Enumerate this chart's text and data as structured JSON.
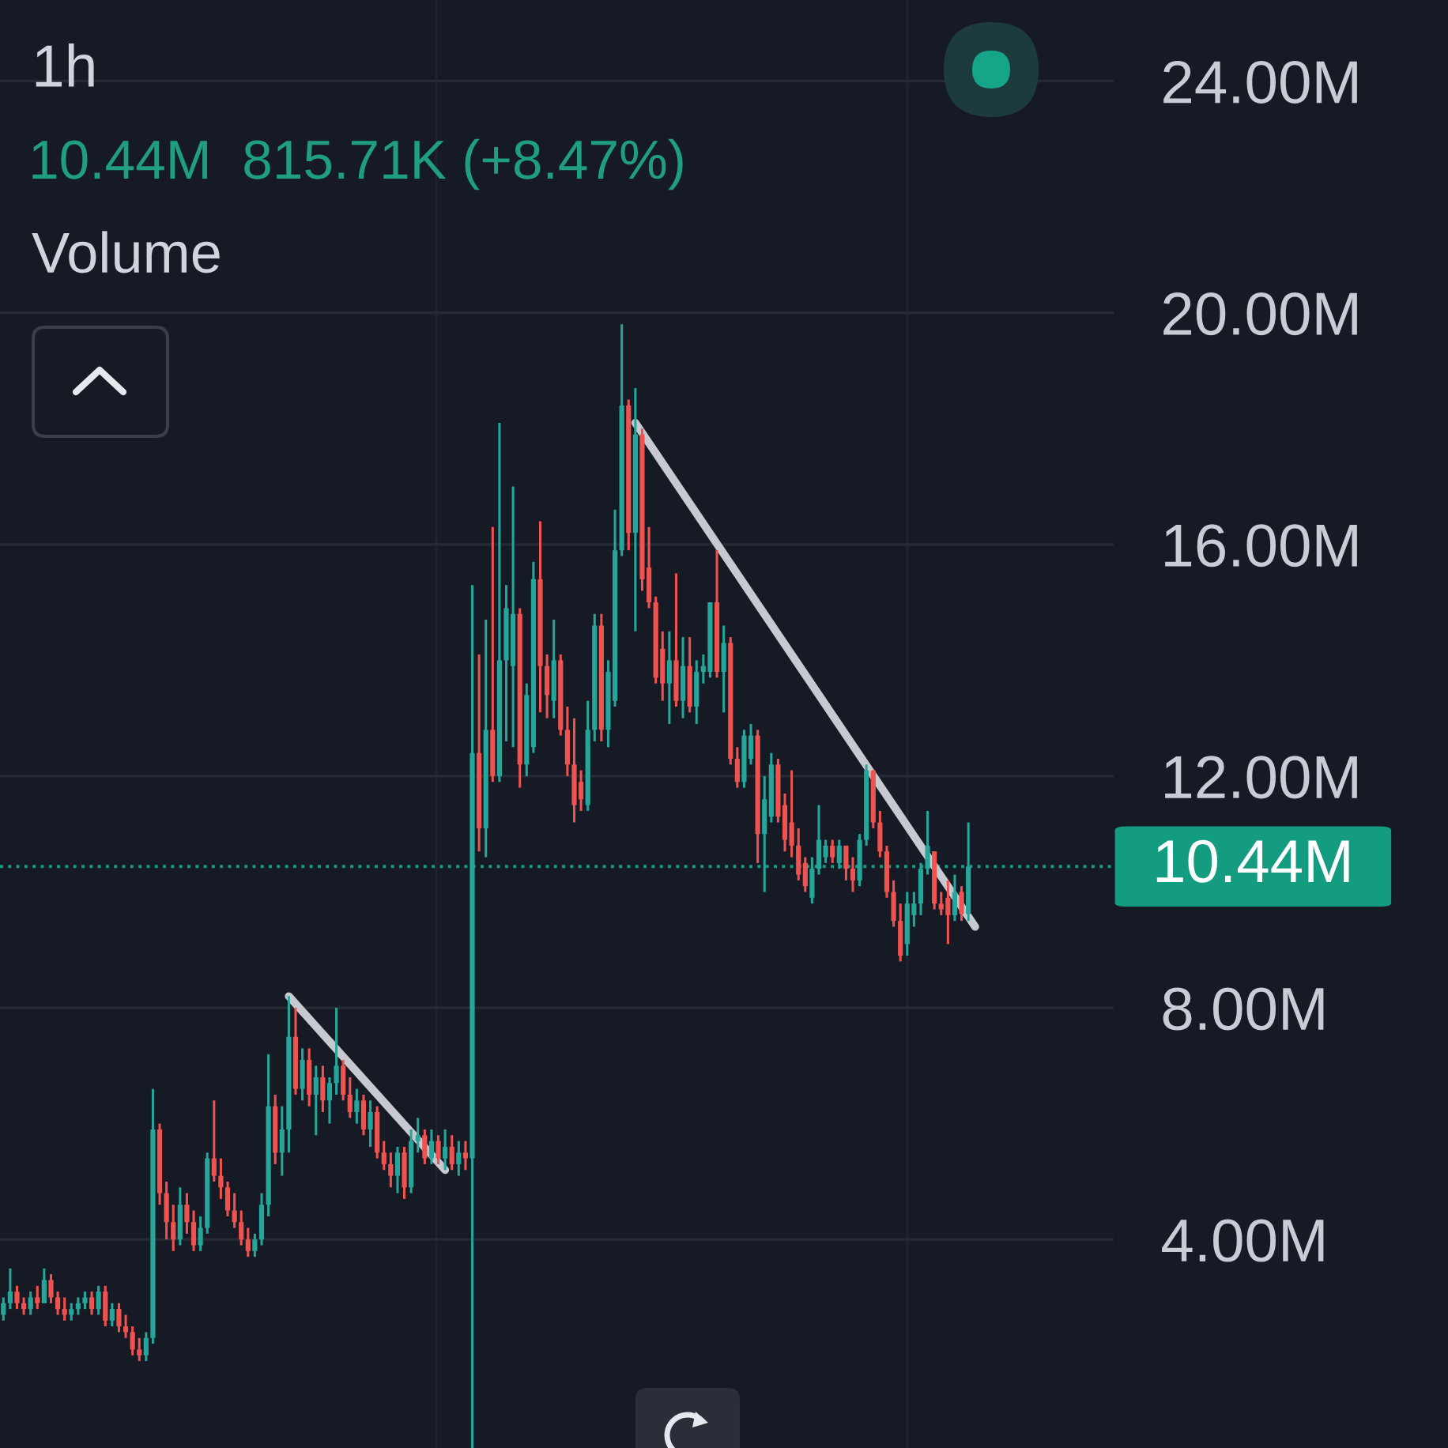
{
  "chart_data": {
    "type": "candlestick",
    "title": "1h",
    "subtitle": "10.44M  815.71K (+8.47%)",
    "annotations": [
      "Volume"
    ],
    "categories": [
      null,
      null,
      null,
      null,
      null,
      null,
      null,
      null,
      null,
      null,
      null,
      null,
      null,
      null,
      null,
      null,
      null,
      null,
      null,
      null,
      null,
      null,
      null,
      null,
      null,
      null,
      null,
      null,
      null,
      null,
      null,
      null,
      null,
      null,
      null,
      null,
      null,
      null,
      null,
      null,
      null,
      null,
      null,
      null,
      null,
      null,
      null,
      null,
      null,
      null,
      null,
      null,
      null,
      null,
      null,
      null,
      null,
      null,
      null,
      null,
      null,
      null,
      null,
      null,
      null,
      null,
      null,
      null,
      null,
      null,
      null,
      null,
      null,
      null,
      null,
      null,
      null,
      null,
      null,
      null,
      null,
      null,
      null,
      null,
      null,
      null,
      null,
      null,
      null,
      null,
      null,
      null,
      null,
      null,
      null,
      null,
      null,
      null,
      null,
      null,
      null,
      null,
      null,
      null,
      null,
      null,
      null,
      null,
      null,
      null,
      null,
      null,
      null,
      null,
      null,
      null,
      null,
      null,
      null,
      null,
      null,
      null,
      null,
      null,
      null,
      null,
      null,
      null,
      null,
      null,
      null,
      null,
      null,
      null,
      null,
      null,
      null,
      null,
      null,
      null,
      null,
      null,
      null,
      null,
      null,
      null,
      null,
      null,
      null,
      null,
      null,
      null,
      null,
      null,
      null,
      null,
      null,
      null,
      null,
      null,
      null,
      null,
      null,
      null
    ],
    "ohlc": [
      [
        2.7,
        3.0,
        2.6,
        2.9
      ],
      [
        2.9,
        3.5,
        2.8,
        3.1
      ],
      [
        3.1,
        3.2,
        2.8,
        2.9
      ],
      [
        2.9,
        3.0,
        2.7,
        2.8
      ],
      [
        2.8,
        3.1,
        2.7,
        3.0
      ],
      [
        3.0,
        3.2,
        2.8,
        2.9
      ],
      [
        2.9,
        3.5,
        2.9,
        3.3
      ],
      [
        3.3,
        3.4,
        2.9,
        3.0
      ],
      [
        3.0,
        3.1,
        2.7,
        2.8
      ],
      [
        2.8,
        3.0,
        2.6,
        2.7
      ],
      [
        2.7,
        2.9,
        2.6,
        2.8
      ],
      [
        2.8,
        3.0,
        2.7,
        2.9
      ],
      [
        2.9,
        3.1,
        2.8,
        3.0
      ],
      [
        3.0,
        3.1,
        2.7,
        2.8
      ],
      [
        2.8,
        3.2,
        2.7,
        3.1
      ],
      [
        3.1,
        3.2,
        2.5,
        2.6
      ],
      [
        2.6,
        2.9,
        2.5,
        2.8
      ],
      [
        2.8,
        2.9,
        2.4,
        2.5
      ],
      [
        2.5,
        2.7,
        2.3,
        2.4
      ],
      [
        2.4,
        2.5,
        2.0,
        2.1
      ],
      [
        2.1,
        2.3,
        1.9,
        2.0
      ],
      [
        2.0,
        2.4,
        1.9,
        2.3
      ],
      [
        2.3,
        6.6,
        2.2,
        5.9
      ],
      [
        5.9,
        6.0,
        4.6,
        4.8
      ],
      [
        4.8,
        5.0,
        4.0,
        4.3
      ],
      [
        4.3,
        4.6,
        3.8,
        4.0
      ],
      [
        4.0,
        4.9,
        3.9,
        4.6
      ],
      [
        4.6,
        4.8,
        4.1,
        4.3
      ],
      [
        4.3,
        4.5,
        3.8,
        3.9
      ],
      [
        3.9,
        4.4,
        3.8,
        4.2
      ],
      [
        4.2,
        5.5,
        4.1,
        5.4
      ],
      [
        5.4,
        6.4,
        5.0,
        5.1
      ],
      [
        5.1,
        5.4,
        4.7,
        4.9
      ],
      [
        4.9,
        5.0,
        4.4,
        4.5
      ],
      [
        4.5,
        4.8,
        4.2,
        4.3
      ],
      [
        4.3,
        4.5,
        3.9,
        4.0
      ],
      [
        4.0,
        4.2,
        3.7,
        3.8
      ],
      [
        3.8,
        4.1,
        3.7,
        4.0
      ],
      [
        4.0,
        4.8,
        3.9,
        4.6
      ],
      [
        4.6,
        7.2,
        4.4,
        6.3
      ],
      [
        6.3,
        6.5,
        5.3,
        5.5
      ],
      [
        5.5,
        6.3,
        5.1,
        5.9
      ],
      [
        5.9,
        8.2,
        5.5,
        7.5
      ],
      [
        7.5,
        8.0,
        6.5,
        6.6
      ],
      [
        6.6,
        7.3,
        6.4,
        7.1
      ],
      [
        7.1,
        7.3,
        6.3,
        6.5
      ],
      [
        6.5,
        7.0,
        5.8,
        6.8
      ],
      [
        6.8,
        7.0,
        6.2,
        6.4
      ],
      [
        6.4,
        6.8,
        6.0,
        6.7
      ],
      [
        6.7,
        8.0,
        6.5,
        7.0
      ],
      [
        7.0,
        7.1,
        6.4,
        6.5
      ],
      [
        6.5,
        6.8,
        6.1,
        6.2
      ],
      [
        6.2,
        6.6,
        6.0,
        6.4
      ],
      [
        6.4,
        6.5,
        5.8,
        5.9
      ],
      [
        5.9,
        6.4,
        5.6,
        6.2
      ],
      [
        6.2,
        6.3,
        5.4,
        5.5
      ],
      [
        5.5,
        5.7,
        5.2,
        5.3
      ],
      [
        5.3,
        5.5,
        4.9,
        5.1
      ],
      [
        5.1,
        5.6,
        4.8,
        5.5
      ],
      [
        5.5,
        5.6,
        4.7,
        4.9
      ],
      [
        4.9,
        5.9,
        4.8,
        5.7
      ],
      [
        5.7,
        6.1,
        5.5,
        5.8
      ],
      [
        5.8,
        5.9,
        5.3,
        5.4
      ],
      [
        5.4,
        5.9,
        5.3,
        5.7
      ],
      [
        5.7,
        5.8,
        5.3,
        5.4
      ],
      [
        5.4,
        5.9,
        5.2,
        5.6
      ],
      [
        5.6,
        5.8,
        5.2,
        5.3
      ],
      [
        5.3,
        5.7,
        5.1,
        5.5
      ],
      [
        5.5,
        5.7,
        5.2,
        5.4
      ],
      [
        5.4,
        15.3,
        0.4,
        12.4
      ],
      [
        12.4,
        14.1,
        10.7,
        11.1
      ],
      [
        11.1,
        14.7,
        10.6,
        12.8
      ],
      [
        12.8,
        16.3,
        11.9,
        12.0
      ],
      [
        12.0,
        18.1,
        11.9,
        14.0
      ],
      [
        14.0,
        15.3,
        12.6,
        14.9
      ],
      [
        13.9,
        17.0,
        12.5,
        14.8
      ],
      [
        14.8,
        14.9,
        11.8,
        12.2
      ],
      [
        12.2,
        13.6,
        12.0,
        13.4
      ],
      [
        12.5,
        15.7,
        12.4,
        15.4
      ],
      [
        15.4,
        16.4,
        13.1,
        13.9
      ],
      [
        13.9,
        14.1,
        13.0,
        13.4
      ],
      [
        13.3,
        14.7,
        13.0,
        14.0
      ],
      [
        14.0,
        14.1,
        12.7,
        12.8
      ],
      [
        12.8,
        13.2,
        12.0,
        12.2
      ],
      [
        12.2,
        13.0,
        11.2,
        11.5
      ],
      [
        11.9,
        12.1,
        11.4,
        11.6
      ],
      [
        11.5,
        13.3,
        11.4,
        12.8
      ],
      [
        12.8,
        14.8,
        12.6,
        14.6
      ],
      [
        14.6,
        14.8,
        12.6,
        12.8
      ],
      [
        12.8,
        14.0,
        12.5,
        13.8
      ],
      [
        13.3,
        16.6,
        13.2,
        15.9
      ],
      [
        15.9,
        19.8,
        15.8,
        18.4
      ],
      [
        18.4,
        18.5,
        15.9,
        16.2
      ],
      [
        16.2,
        18.7,
        14.5,
        17.9
      ],
      [
        17.9,
        18.0,
        15.2,
        15.4
      ],
      [
        15.6,
        16.3,
        14.9,
        15.0
      ],
      [
        15.0,
        15.1,
        13.6,
        13.7
      ],
      [
        14.2,
        14.5,
        13.3,
        13.6
      ],
      [
        13.6,
        14.5,
        12.9,
        14.0
      ],
      [
        14.0,
        15.5,
        13.2,
        13.3
      ],
      [
        13.3,
        14.4,
        13.0,
        13.9
      ],
      [
        13.9,
        14.4,
        13.1,
        13.2
      ],
      [
        13.2,
        14.0,
        12.9,
        13.8
      ],
      [
        13.8,
        14.1,
        13.6,
        13.9
      ],
      [
        13.8,
        15.0,
        13.7,
        15.0
      ],
      [
        15.0,
        15.9,
        13.7,
        13.8
      ],
      [
        13.8,
        14.6,
        13.1,
        14.3
      ],
      [
        14.3,
        14.4,
        12.2,
        12.3
      ],
      [
        12.3,
        12.5,
        11.8,
        11.9
      ],
      [
        11.9,
        12.8,
        11.8,
        12.7
      ],
      [
        12.3,
        12.9,
        12.2,
        12.7
      ],
      [
        12.7,
        12.8,
        10.5,
        11.0
      ],
      [
        11.0,
        12.0,
        10.0,
        11.6
      ],
      [
        11.3,
        12.4,
        11.2,
        12.2
      ],
      [
        12.2,
        12.3,
        11.2,
        11.3
      ],
      [
        11.5,
        11.7,
        10.7,
        10.9
      ],
      [
        11.2,
        12.1,
        10.6,
        10.8
      ],
      [
        10.8,
        11.1,
        10.2,
        10.3
      ],
      [
        10.5,
        10.6,
        10.0,
        10.1
      ],
      [
        9.9,
        10.6,
        9.8,
        10.4
      ],
      [
        10.4,
        11.5,
        10.3,
        10.9
      ],
      [
        10.6,
        10.9,
        10.5,
        10.8
      ],
      [
        10.8,
        10.9,
        10.5,
        10.6
      ],
      [
        10.5,
        10.9,
        10.4,
        10.8
      ],
      [
        10.8,
        10.8,
        10.2,
        10.4
      ],
      [
        10.4,
        10.6,
        10.0,
        10.2
      ],
      [
        10.2,
        11.0,
        10.1,
        10.9
      ],
      [
        10.9,
        12.2,
        10.8,
        12.1
      ],
      [
        12.1,
        12.1,
        11.1,
        11.2
      ],
      [
        11.2,
        11.4,
        10.6,
        10.7
      ],
      [
        10.7,
        10.8,
        9.9,
        10.0
      ],
      [
        10.0,
        10.2,
        9.4,
        9.5
      ],
      [
        9.5,
        9.8,
        8.8,
        8.9
      ],
      [
        9.1,
        10.0,
        8.9,
        9.8
      ],
      [
        9.6,
        10.0,
        9.4,
        9.8
      ],
      [
        9.8,
        10.5,
        9.6,
        10.4
      ],
      [
        10.4,
        11.4,
        10.3,
        10.8
      ],
      [
        10.7,
        10.7,
        9.7,
        9.8
      ],
      [
        9.8,
        10.0,
        9.6,
        9.7
      ],
      [
        9.9,
        10.2,
        9.1,
        9.6
      ],
      [
        9.6,
        10.3,
        9.5,
        10.0
      ],
      [
        10.0,
        10.1,
        9.5,
        9.62
      ],
      [
        9.62,
        11.2,
        9.5,
        10.44
      ],
      null,
      null,
      null,
      null,
      null,
      null,
      null,
      null,
      null,
      null,
      null,
      null,
      null,
      null,
      null,
      null,
      null,
      null,
      null,
      null,
      null
    ],
    "colors": [
      "#26a69a",
      "#26a69a",
      "#ef5350",
      "#ef5350",
      "#26a69a",
      "#ef5350",
      "#26a69a",
      "#ef5350",
      "#ef5350",
      "#ef5350",
      "#26a69a",
      "#26a69a",
      "#26a69a",
      "#ef5350",
      "#26a69a",
      "#ef5350",
      "#26a69a",
      "#ef5350",
      "#ef5350",
      "#ef5350",
      "#ef5350",
      "#26a69a",
      "#26a69a",
      "#ef5350",
      "#ef5350",
      "#ef5350",
      "#26a69a",
      "#ef5350",
      "#ef5350",
      "#26a69a",
      "#26a69a",
      "#ef5350",
      "#ef5350",
      "#ef5350",
      "#ef5350",
      "#ef5350",
      "#ef5350",
      "#26a69a",
      "#26a69a",
      "#26a69a",
      "#ef5350",
      "#26a69a",
      "#26a69a",
      "#ef5350",
      "#26a69a",
      "#ef5350",
      "#26a69a",
      "#ef5350",
      "#26a69a",
      "#26a69a",
      "#ef5350",
      "#ef5350",
      "#26a69a",
      "#ef5350",
      "#26a69a",
      "#ef5350",
      "#ef5350",
      "#ef5350",
      "#26a69a",
      "#ef5350",
      "#26a69a",
      "#26a69a",
      "#ef5350",
      "#26a69a",
      "#ef5350",
      "#26a69a",
      "#ef5350",
      "#26a69a",
      "#ef5350",
      "#26a69a",
      "#ef5350",
      "#26a69a",
      "#ef5350",
      "#26a69a",
      "#26a69a",
      "#26a69a",
      "#ef5350",
      "#26a69a",
      "#26a69a",
      "#ef5350",
      "#ef5350",
      "#26a69a",
      "#ef5350",
      "#ef5350",
      "#ef5350",
      "#ef5350",
      "#26a69a",
      "#26a69a",
      "#ef5350",
      "#26a69a",
      "#26a69a",
      "#26a69a",
      "#ef5350",
      "#26a69a",
      "#ef5350",
      "#ef5350",
      "#ef5350",
      "#ef5350",
      "#26a69a",
      "#ef5350",
      "#26a69a",
      "#ef5350",
      "#26a69a",
      "#26a69a",
      "#26a69a",
      "#ef5350",
      "#26a69a",
      "#ef5350",
      "#ef5350",
      "#26a69a",
      "#26a69a",
      "#ef5350",
      "#26a69a",
      "#26a69a",
      "#ef5350",
      "#ef5350",
      "#ef5350",
      "#ef5350",
      "#ef5350",
      "#26a69a",
      "#26a69a",
      "#26a69a",
      "#ef5350",
      "#26a69a",
      "#ef5350",
      "#ef5350",
      "#26a69a",
      "#26a69a",
      "#ef5350",
      "#ef5350",
      "#ef5350",
      "#ef5350",
      "#ef5350",
      "#26a69a",
      "#26a69a",
      "#26a69a",
      "#26a69a",
      "#ef5350",
      "#ef5350",
      "#ef5350",
      "#26a69a",
      "#ef5350",
      "#26a69a",
      null,
      null,
      null,
      null,
      null,
      null,
      null,
      null,
      null,
      null,
      null,
      null,
      null,
      null,
      null,
      null,
      null,
      null,
      null,
      null,
      null
    ],
    "series": [
      {
        "type": "line",
        "color": "#c8c9d0",
        "values": [
          null,
          null,
          null,
          null,
          null,
          null,
          null,
          null,
          null,
          null,
          null,
          null,
          null,
          null,
          null,
          null,
          null,
          null,
          null,
          null,
          null,
          null,
          null,
          null,
          null,
          null,
          null,
          null,
          null,
          null,
          null,
          null,
          null,
          null,
          null,
          null,
          null,
          null,
          null,
          null,
          null,
          null,
          8.2,
          null,
          null,
          null,
          null,
          null,
          null,
          null,
          null,
          null,
          null,
          null,
          null,
          null,
          null,
          null,
          null,
          null,
          null,
          null,
          null,
          null,
          null,
          5.2,
          null,
          null,
          null,
          null,
          null,
          null,
          null,
          null,
          null,
          null,
          null,
          null,
          null,
          null,
          null,
          null,
          null,
          null,
          null,
          null,
          null,
          null,
          null,
          null,
          null,
          null,
          null,
          null,
          null,
          null,
          null,
          null,
          null,
          null,
          null,
          null,
          null,
          null,
          null,
          null,
          null,
          null,
          null,
          null,
          null,
          null,
          null,
          null,
          null,
          null,
          null,
          null,
          null,
          null,
          null,
          null,
          null,
          null,
          null,
          null,
          null,
          null,
          null,
          null,
          null,
          null,
          null,
          null,
          null,
          null,
          null,
          null,
          null,
          null,
          null,
          null,
          null,
          null,
          null,
          null,
          null,
          null,
          null,
          null,
          null,
          null,
          null,
          null,
          null,
          null,
          null,
          null,
          null,
          null,
          null,
          null,
          null,
          null
        ]
      },
      {
        "type": "line",
        "color": "#c8c9d0",
        "values": [
          null,
          null,
          null,
          null,
          null,
          null,
          null,
          null,
          null,
          null,
          null,
          null,
          null,
          null,
          null,
          null,
          null,
          null,
          null,
          null,
          null,
          null,
          null,
          null,
          null,
          null,
          null,
          null,
          null,
          null,
          null,
          null,
          null,
          null,
          null,
          null,
          null,
          null,
          null,
          null,
          null,
          null,
          null,
          null,
          null,
          null,
          null,
          null,
          null,
          null,
          null,
          null,
          null,
          null,
          null,
          null,
          null,
          null,
          null,
          null,
          null,
          null,
          null,
          null,
          null,
          null,
          null,
          null,
          null,
          null,
          null,
          null,
          null,
          null,
          null,
          null,
          null,
          null,
          null,
          null,
          null,
          null,
          null,
          null,
          null,
          null,
          null,
          null,
          null,
          null,
          null,
          null,
          null,
          18.1,
          null,
          null,
          null,
          null,
          null,
          null,
          null,
          null,
          null,
          null,
          null,
          null,
          null,
          null,
          null,
          null,
          null,
          null,
          null,
          null,
          null,
          null,
          null,
          null,
          null,
          null,
          null,
          null,
          null,
          null,
          null,
          null,
          null,
          null,
          null,
          null,
          null,
          null,
          null,
          null,
          null,
          null,
          null,
          null,
          null,
          null,
          null,
          null,
          null,
          9.4,
          null,
          null,
          null,
          null,
          null,
          null,
          null,
          null,
          null,
          null,
          null,
          null,
          null,
          null,
          null,
          null,
          null,
          null,
          null,
          null
        ]
      }
    ],
    "ref_lines": [
      {
        "axis": "y",
        "value": 10.44,
        "label": "10.44M",
        "color": "#149c80",
        "line_style": "dotted"
      }
    ],
    "ylim": [
      0.4,
      25.4
    ],
    "yticks": [
      {
        "value": 4,
        "label": "4.00M"
      },
      {
        "value": 8,
        "label": "8.00M"
      },
      {
        "value": 12,
        "label": "12.00M"
      },
      {
        "value": 16,
        "label": "16.00M"
      },
      {
        "value": 20,
        "label": "20.00M"
      },
      {
        "value": 24,
        "label": "24.00M"
      }
    ],
    "grid": "y",
    "tick_labels": "y"
  }
}
